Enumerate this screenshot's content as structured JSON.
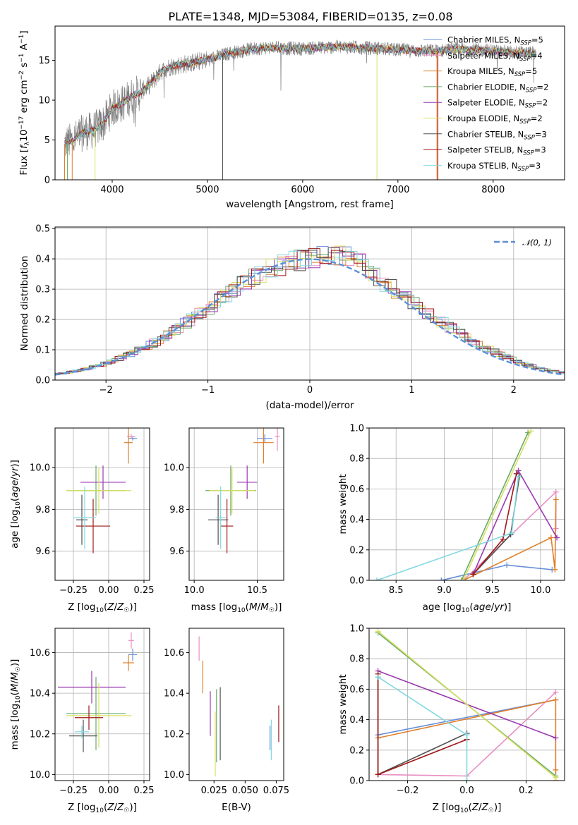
{
  "title": "PLATE=1348, MJD=53084, FIBERID=0135, z=0.08",
  "models": [
    {
      "name": "Chabrier MILES",
      "nssp": "5",
      "color": "#6a8fd8"
    },
    {
      "name": "Salpeter MILES",
      "nssp": "4",
      "color": "#e88fc2"
    },
    {
      "name": "Kroupa MILES",
      "nssp": "5",
      "color": "#e07f2a"
    },
    {
      "name": "Chabrier ELODIE",
      "nssp": "2",
      "color": "#6aaa6a"
    },
    {
      "name": "Salpeter ELODIE",
      "nssp": "2",
      "color": "#9a3aaf"
    },
    {
      "name": "Kroupa ELODIE",
      "nssp": "2",
      "color": "#d8e060"
    },
    {
      "name": "Chabrier STELIB",
      "nssp": "3",
      "color": "#505050"
    },
    {
      "name": "Salpeter STELIB",
      "nssp": "3",
      "color": "#a01818"
    },
    {
      "name": "Kroupa STELIB",
      "nssp": "3",
      "color": "#80d8e0"
    }
  ],
  "chart_data": [
    {
      "type": "line",
      "id": "spectrum",
      "xlabel": "wavelength [Angstrom, rest frame]",
      "ylabel": "Flux [f_λ 10^-17 erg cm^-2 s^-1 A^-1]",
      "xlim": [
        3400,
        8750
      ],
      "ylim": [
        0,
        19.3
      ],
      "xticks": [
        4000,
        5000,
        6000,
        7000,
        8000
      ],
      "yticks": [
        0,
        5,
        10,
        15
      ],
      "grid": false,
      "legend": "right",
      "data_color": "#808080",
      "continuum": [
        [
          3500,
          4.5
        ],
        [
          3600,
          5
        ],
        [
          3700,
          6
        ],
        [
          3800,
          6.2
        ],
        [
          3900,
          7
        ],
        [
          4000,
          9
        ],
        [
          4100,
          9.5
        ],
        [
          4200,
          10.5
        ],
        [
          4300,
          11
        ],
        [
          4400,
          12
        ],
        [
          4500,
          13.5
        ],
        [
          4600,
          14.2
        ],
        [
          4800,
          14.6
        ],
        [
          5000,
          15.1
        ],
        [
          5200,
          15.8
        ],
        [
          5400,
          16.3
        ],
        [
          5600,
          16.6
        ],
        [
          5800,
          16.5
        ],
        [
          6000,
          16.5
        ],
        [
          6200,
          16.6
        ],
        [
          6400,
          16.7
        ],
        [
          6600,
          16.6
        ],
        [
          6800,
          16.5
        ],
        [
          7000,
          16.3
        ],
        [
          7200,
          16.2
        ],
        [
          7400,
          16.2
        ],
        [
          7600,
          16.4
        ],
        [
          7800,
          16.3
        ],
        [
          8000,
          16.2
        ],
        [
          8200,
          16.0
        ],
        [
          8400,
          15.9
        ]
      ]
    },
    {
      "type": "line",
      "id": "residuals",
      "xlabel": "(data-model)/error",
      "ylabel": "Normed distribution",
      "xlim": [
        -2.5,
        2.5
      ],
      "ylim": [
        0,
        0.505
      ],
      "xticks": [
        -2,
        -1,
        0,
        1,
        2
      ],
      "yticks": [
        0.0,
        0.1,
        0.2,
        0.3,
        0.4,
        0.5
      ],
      "grid": true,
      "legend": "top-right",
      "gauss_label": "𝒩(0, 1)",
      "gauss_color": "#5b8fd8"
    },
    {
      "type": "scatter",
      "id": "age_vs_Z",
      "xlabel": "Z [log10(Z/Z☉)]",
      "ylabel": "age  [log10(age/yr)]",
      "xlim": [
        -0.38,
        0.29
      ],
      "ylim": [
        9.46,
        10.19
      ],
      "xticks": [
        -0.25,
        0.0,
        0.25
      ],
      "yticks": [
        9.6,
        9.8,
        10.0
      ],
      "grid": true,
      "points": [
        {
          "m": 0,
          "x": 0.17,
          "y": 10.14,
          "xe": 0.03,
          "ye": 0.01
        },
        {
          "m": 1,
          "x": 0.16,
          "y": 10.15,
          "xe": 0.03,
          "ye": 0.01
        },
        {
          "m": 2,
          "x": 0.14,
          "y": 10.12,
          "xe": 0.03,
          "ye": 0.1
        },
        {
          "m": 3,
          "x": -0.09,
          "y": 9.89,
          "xe": 0.21,
          "ye": 0.12
        },
        {
          "m": 4,
          "x": -0.04,
          "y": 9.93,
          "xe": 0.16,
          "ye": 0.08
        },
        {
          "m": 5,
          "x": -0.07,
          "y": 9.89,
          "xe": 0.23,
          "ye": 0.11
        },
        {
          "m": 6,
          "x": -0.19,
          "y": 9.75,
          "xe": 0.04,
          "ye": 0.12
        },
        {
          "m": 7,
          "x": -0.11,
          "y": 9.72,
          "xe": 0.12,
          "ye": 0.13
        },
        {
          "m": 8,
          "x": -0.17,
          "y": 9.76,
          "xe": 0.08,
          "ye": 0.15
        }
      ]
    },
    {
      "type": "scatter",
      "id": "age_vs_mass",
      "xlabel": "mass [log10(M/M☉)]",
      "ylabel": "",
      "xlim": [
        9.96,
        10.71
      ],
      "ylim": [
        9.46,
        10.19
      ],
      "xticks": [
        10.0,
        10.5
      ],
      "yticks": [
        9.6,
        9.8,
        10.0
      ],
      "grid": true,
      "points": [
        {
          "m": 0,
          "x": 10.56,
          "y": 10.14,
          "xe": 0.06,
          "ye": 0.02
        },
        {
          "m": 1,
          "x": 10.66,
          "y": 10.15,
          "xe": 0.02,
          "ye": 0.07
        },
        {
          "m": 2,
          "x": 10.55,
          "y": 10.12,
          "xe": 0.08,
          "ye": 0.1
        },
        {
          "m": 3,
          "x": 10.29,
          "y": 9.89,
          "xe": 0.2,
          "ye": 0.12
        },
        {
          "m": 4,
          "x": 10.42,
          "y": 9.93,
          "xe": 0.08,
          "ye": 0.08
        },
        {
          "m": 5,
          "x": 10.3,
          "y": 9.89,
          "xe": 0.18,
          "ye": 0.11
        },
        {
          "m": 6,
          "x": 10.19,
          "y": 9.75,
          "xe": 0.08,
          "ye": 0.12
        },
        {
          "m": 7,
          "x": 10.26,
          "y": 9.72,
          "xe": 0.05,
          "ye": 0.13
        },
        {
          "m": 8,
          "x": 10.21,
          "y": 9.76,
          "xe": 0.04,
          "ye": 0.15
        }
      ]
    },
    {
      "type": "line",
      "id": "weight_vs_age",
      "xlabel": "age  [log10(age/yr)]",
      "ylabel": "mass weight",
      "xlim": [
        8.22,
        10.25
      ],
      "ylim": [
        0,
        1.0
      ],
      "xticks": [
        8.5,
        9.0,
        9.5,
        10.0
      ],
      "yticks": [
        0.0,
        0.2,
        0.4,
        0.6,
        0.8,
        1.0
      ],
      "grid": true,
      "series": [
        {
          "m": 0,
          "x": [
            8.97,
            9.65,
            10.12
          ],
          "y": [
            0.0,
            0.1,
            0.07
          ]
        },
        {
          "m": 1,
          "x": [
            9.2,
            10.16,
            10.16
          ],
          "y": [
            0.0,
            0.58,
            0.34
          ]
        },
        {
          "m": 2,
          "x": [
            9.2,
            10.11,
            10.15,
            10.16
          ],
          "y": [
            0.0,
            0.28,
            0.07,
            0.53
          ]
        },
        {
          "m": 3,
          "x": [
            9.18,
            9.87
          ],
          "y": [
            0.0,
            0.97
          ]
        },
        {
          "m": 4,
          "x": [
            9.3,
            9.77,
            10.17
          ],
          "y": [
            0.04,
            0.72,
            0.28
          ]
        },
        {
          "m": 5,
          "x": [
            9.2,
            9.9
          ],
          "y": [
            0.0,
            0.98
          ]
        },
        {
          "m": 6,
          "x": [
            9.3,
            9.69,
            9.78
          ],
          "y": [
            0.04,
            0.3,
            0.68
          ]
        },
        {
          "m": 7,
          "x": [
            9.3,
            9.61,
            9.75
          ],
          "y": [
            0.04,
            0.27,
            0.7
          ]
        },
        {
          "m": 8,
          "x": [
            8.3,
            9.7,
            9.77
          ],
          "y": [
            0.0,
            0.31,
            0.68
          ]
        }
      ]
    },
    {
      "type": "scatter",
      "id": "mass_vs_Z",
      "xlabel": "Z [log10(Z/Z☉)]",
      "ylabel": "mass [log10(M/M☉)]",
      "xlim": [
        -0.38,
        0.29
      ],
      "ylim": [
        9.97,
        10.72
      ],
      "xticks": [
        -0.25,
        0.0,
        0.25
      ],
      "yticks": [
        10.0,
        10.2,
        10.4,
        10.6
      ],
      "grid": true,
      "points": [
        {
          "m": 0,
          "x": 0.17,
          "y": 10.59,
          "xe": 0.03,
          "ye": 0.03
        },
        {
          "m": 1,
          "x": 0.16,
          "y": 10.66,
          "xe": 0.02,
          "ye": 0.04
        },
        {
          "m": 2,
          "x": 0.14,
          "y": 10.55,
          "xe": 0.04,
          "ye": 0.04
        },
        {
          "m": 3,
          "x": -0.09,
          "y": 10.3,
          "xe": 0.21,
          "ye": 0.18
        },
        {
          "m": 4,
          "x": -0.12,
          "y": 10.43,
          "xe": 0.24,
          "ye": 0.08
        },
        {
          "m": 5,
          "x": -0.07,
          "y": 10.29,
          "xe": 0.23,
          "ye": 0.16
        },
        {
          "m": 6,
          "x": -0.18,
          "y": 10.19,
          "xe": 0.1,
          "ye": 0.08
        },
        {
          "m": 7,
          "x": -0.14,
          "y": 10.28,
          "xe": 0.1,
          "ye": 0.06
        },
        {
          "m": 8,
          "x": -0.19,
          "y": 10.21,
          "xe": 0.05,
          "ye": 0.03
        }
      ]
    },
    {
      "type": "scatter",
      "id": "mass_vs_ebv",
      "xlabel": "E(B-V)",
      "ylabel": "",
      "xlim": [
        0.005,
        0.081
      ],
      "ylim": [
        9.97,
        10.72
      ],
      "xticks": [
        0.025,
        0.05,
        0.075
      ],
      "yticks": [
        10.0,
        10.2,
        10.4,
        10.6
      ],
      "grid": false,
      "points": [
        {
          "m": 0,
          "x": 0.07,
          "y": 10.18,
          "xe": 0,
          "ye": 0.06
        },
        {
          "m": 1,
          "x": 0.013,
          "y": 10.62,
          "xe": 0,
          "ye": 0.06
        },
        {
          "m": 2,
          "x": 0.016,
          "y": 10.48,
          "xe": 0,
          "ye": 0.08
        },
        {
          "m": 3,
          "x": 0.027,
          "y": 10.24,
          "xe": 0,
          "ye": 0.18
        },
        {
          "m": 4,
          "x": 0.022,
          "y": 10.3,
          "xe": 0,
          "ye": 0.11
        },
        {
          "m": 5,
          "x": 0.026,
          "y": 10.15,
          "xe": 0,
          "ye": 0.16
        },
        {
          "m": 6,
          "x": 0.03,
          "y": 10.25,
          "xe": 0,
          "ye": 0.18
        },
        {
          "m": 7,
          "x": 0.077,
          "y": 10.25,
          "xe": 0,
          "ye": 0.09
        },
        {
          "m": 8,
          "x": 0.071,
          "y": 10.17,
          "xe": 0,
          "ye": 0.1
        }
      ]
    },
    {
      "type": "line",
      "id": "weight_vs_Z",
      "xlabel": "Z [log10(Z/Z☉)]",
      "ylabel": "mass weight",
      "xlim": [
        -0.33,
        0.33
      ],
      "ylim": [
        0,
        1.0
      ],
      "xticks": [
        -0.2,
        0.0,
        0.2
      ],
      "yticks": [
        0.0,
        0.2,
        0.4,
        0.6,
        0.8,
        1.0
      ],
      "grid": true,
      "series": [
        {
          "m": 0,
          "x": [
            -0.3,
            0.3
          ],
          "y": [
            0.3,
            0.53
          ]
        },
        {
          "m": 1,
          "x": [
            -0.3,
            0.0,
            0.3
          ],
          "y": [
            0.04,
            0.03,
            0.58
          ]
        },
        {
          "m": 2,
          "x": [
            -0.3,
            0.3,
            0.3,
            0.3
          ],
          "y": [
            0.28,
            0.53,
            0.07,
            0.0
          ]
        },
        {
          "m": 3,
          "x": [
            -0.3,
            0.3
          ],
          "y": [
            0.97,
            0.03
          ]
        },
        {
          "m": 4,
          "x": [
            -0.3,
            0.3
          ],
          "y": [
            0.72,
            0.28
          ]
        },
        {
          "m": 5,
          "x": [
            -0.3,
            0.3
          ],
          "y": [
            0.98,
            0.02
          ]
        },
        {
          "m": 6,
          "x": [
            -0.3,
            -0.3,
            0.0
          ],
          "y": [
            0.68,
            0.04,
            0.31
          ]
        },
        {
          "m": 7,
          "x": [
            -0.3,
            -0.3,
            0.0
          ],
          "y": [
            0.7,
            0.04,
            0.27
          ]
        },
        {
          "m": 8,
          "x": [
            -0.3,
            0.0,
            0.0
          ],
          "y": [
            0.68,
            0.3,
            0.0
          ]
        }
      ]
    }
  ]
}
